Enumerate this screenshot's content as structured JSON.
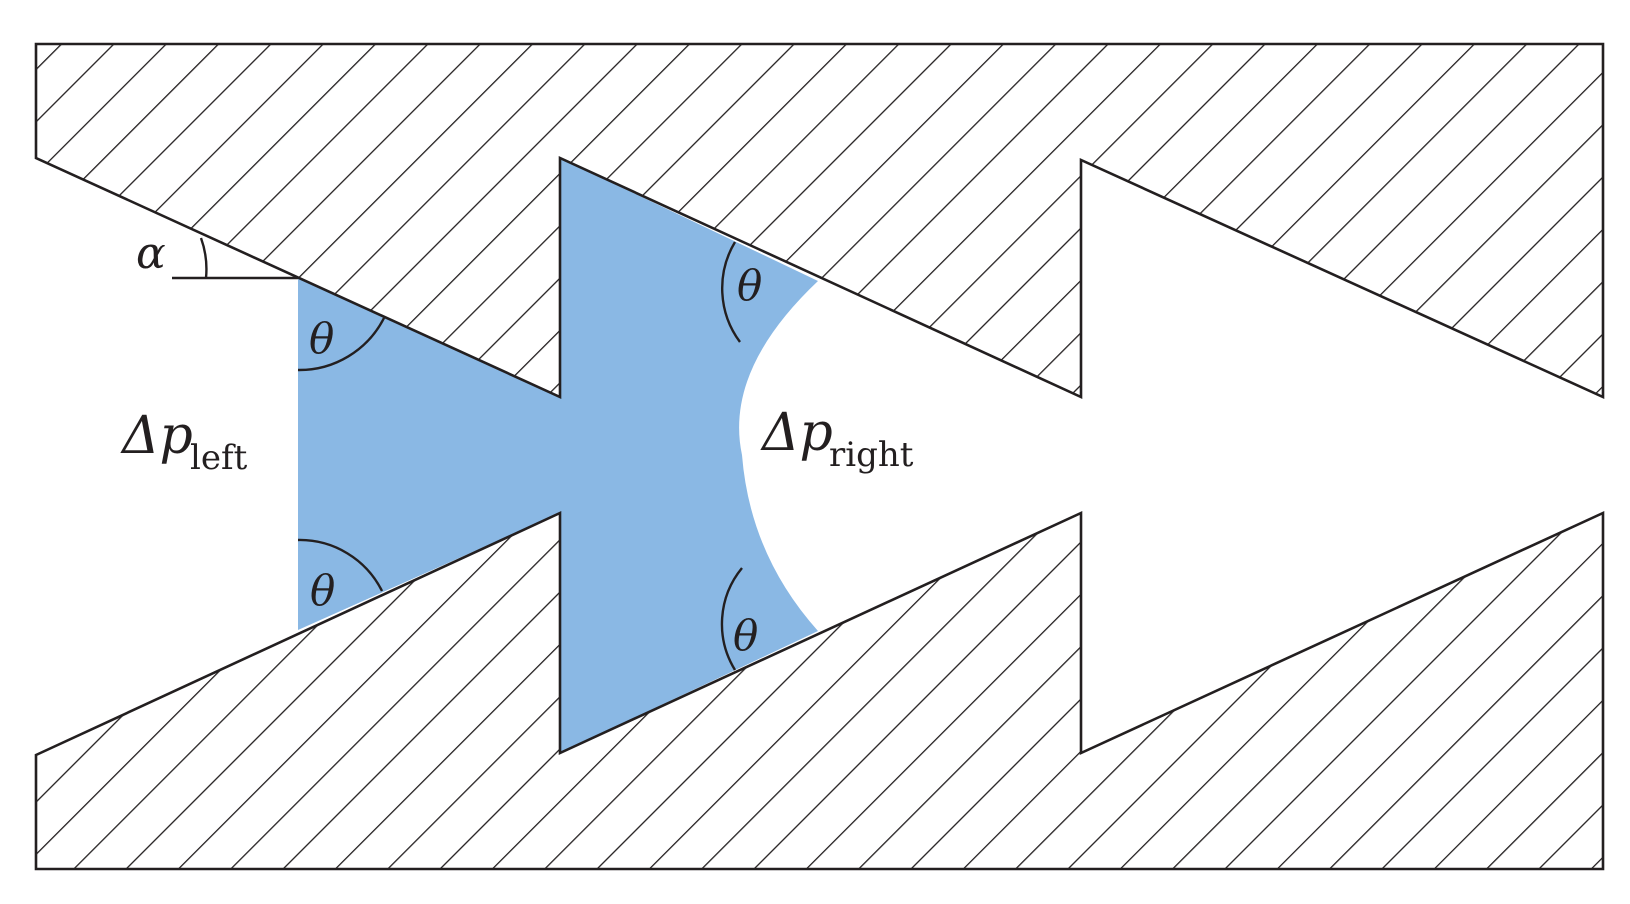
{
  "diagram": {
    "labels": {
      "alpha": "α",
      "theta": "θ",
      "delta_p_left": {
        "main": "Δp",
        "sub": "left"
      },
      "delta_p_right": {
        "main": "Δp",
        "sub": "right"
      }
    },
    "colors": {
      "liquid": "#8ab8e4",
      "wall_stroke": "#231f20",
      "hatch": "#231f20",
      "background": "#ffffff"
    }
  }
}
